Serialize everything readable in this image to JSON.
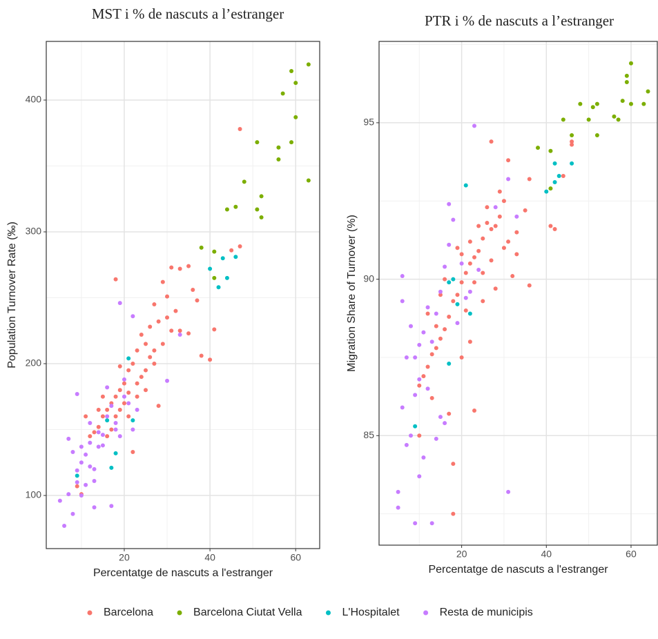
{
  "chart_data": [
    {
      "type": "scatter",
      "title": "MST i % de nascuts a l’estranger",
      "x_label": "Percentatge de nascuts a l'estranger",
      "y_label": "Population Turnover Rate (‰)",
      "xlim": [
        1.8,
        65.6
      ],
      "ylim": [
        59.7,
        444.5
      ],
      "xticks": [
        20,
        40,
        60
      ],
      "yticks": [
        100,
        200,
        300,
        400
      ],
      "grid": true,
      "series": [
        {
          "name": "Barcelona",
          "color": "#F8766D",
          "x": [
            47,
            47,
            45,
            41,
            40,
            38,
            35,
            33,
            37,
            36,
            35,
            31,
            30,
            29,
            28,
            27,
            26,
            25,
            24,
            23,
            22,
            21,
            20,
            19,
            18,
            17,
            16,
            15,
            14,
            13,
            12,
            11,
            18,
            19,
            28,
            22,
            10,
            9,
            24,
            26,
            29,
            30,
            32,
            33,
            27,
            25,
            23,
            21,
            20,
            18,
            17,
            16,
            19,
            21,
            23,
            25,
            27,
            31,
            14,
            15
          ],
          "values": [
            378,
            289,
            286,
            226,
            203,
            206,
            274,
            272,
            248,
            256,
            223,
            273,
            251,
            262,
            232,
            245,
            228,
            215,
            222,
            210,
            200,
            195,
            185,
            180,
            175,
            170,
            165,
            160,
            152,
            148,
            145,
            160,
            264,
            198,
            168,
            133,
            101,
            107,
            190,
            205,
            215,
            235,
            240,
            225,
            210,
            195,
            185,
            178,
            170,
            160,
            150,
            145,
            165,
            160,
            175,
            180,
            200,
            225,
            165,
            175
          ]
        },
        {
          "name": "Barcelona Ciutat Vella",
          "color": "#7CAE00",
          "x": [
            63,
            59,
            60,
            57,
            60,
            51,
            59,
            56,
            56,
            63,
            48,
            52,
            46,
            44,
            51,
            52,
            38,
            41,
            41
          ],
          "values": [
            427,
            422,
            413,
            405,
            387,
            368,
            368,
            364,
            355,
            339,
            338,
            327,
            319,
            317,
            317,
            311,
            288,
            285,
            265
          ]
        },
        {
          "name": "L'Hospitalet",
          "color": "#00BFC4",
          "x": [
            40,
            43,
            46,
            42,
            44,
            21,
            22,
            16,
            18,
            17,
            9
          ],
          "values": [
            272,
            280,
            281,
            258,
            265,
            204,
            157,
            157,
            132,
            121,
            115
          ]
        },
        {
          "name": "Resta de municipis",
          "color": "#C77CFF",
          "x": [
            19,
            22,
            20,
            30,
            33,
            6,
            8,
            13,
            17,
            5,
            7,
            10,
            11,
            13,
            7,
            9,
            10,
            11,
            12,
            14,
            15,
            9,
            14,
            16,
            17,
            18,
            19,
            20,
            21,
            22,
            23,
            12,
            13,
            8,
            9,
            15,
            16,
            10,
            12,
            18
          ],
          "values": [
            246,
            236,
            188,
            187,
            222,
            77,
            86,
            91,
            92,
            96,
            101,
            100,
            108,
            111,
            143,
            119,
            125,
            131,
            122,
            137,
            138,
            177,
            148,
            160,
            168,
            155,
            145,
            175,
            170,
            150,
            165,
            140,
            120,
            133,
            110,
            146,
            182,
            137,
            155,
            150
          ]
        }
      ]
    },
    {
      "type": "scatter",
      "title": "PTR i % de nascuts a l’estranger",
      "x_label": "Percentatge de nascuts a l'estranger",
      "y_label": "Migration Share of Turnover (%)",
      "xlim": [
        0.5,
        66.2
      ],
      "ylim": [
        81.5,
        97.6
      ],
      "xticks": [
        20,
        40,
        60
      ],
      "yticks": [
        85,
        90,
        95
      ],
      "grid": true,
      "series": [
        {
          "name": "Barcelona",
          "color": "#F8766D",
          "x": [
            46,
            46,
            44,
            41,
            42,
            36,
            31,
            27,
            35,
            33,
            31,
            30,
            29,
            28,
            27,
            26,
            25,
            24,
            23,
            22,
            21,
            20,
            19,
            18,
            17,
            16,
            15,
            14,
            13,
            12,
            11,
            10,
            18,
            18,
            23,
            32,
            36,
            28,
            25,
            22,
            20,
            17,
            13,
            10,
            26,
            29,
            24,
            22,
            20,
            19,
            16,
            15,
            30,
            27,
            25,
            33,
            12,
            14,
            21,
            23
          ],
          "values": [
            94.4,
            94.3,
            93.3,
            91.7,
            91.6,
            93.2,
            93.8,
            94.4,
            92.2,
            91.5,
            91.2,
            92.5,
            92.0,
            91.7,
            91.6,
            91.8,
            91.3,
            90.9,
            90.7,
            90.5,
            90.2,
            89.9,
            89.5,
            89.3,
            88.8,
            88.4,
            88.1,
            87.8,
            87.6,
            87.2,
            86.9,
            86.6,
            84.1,
            82.5,
            85.8,
            90.1,
            89.8,
            89.7,
            89.3,
            88.0,
            87.5,
            85.7,
            86.2,
            85.0,
            92.3,
            92.8,
            91.7,
            91.2,
            90.8,
            91.0,
            90.0,
            89.5,
            91.0,
            90.6,
            90.2,
            90.8,
            88.9,
            88.5,
            89.0,
            89.9
          ]
        },
        {
          "name": "Barcelona Ciutat Vella",
          "color": "#7CAE00",
          "x": [
            60,
            59,
            59,
            64,
            58,
            60,
            63,
            52,
            51,
            48,
            56,
            57,
            50,
            44,
            38,
            46,
            52,
            41,
            41
          ],
          "values": [
            96.9,
            96.5,
            96.3,
            96.0,
            95.7,
            95.6,
            95.6,
            95.6,
            95.5,
            95.6,
            95.2,
            95.1,
            95.1,
            95.1,
            94.2,
            94.6,
            94.6,
            94.1,
            92.9
          ]
        },
        {
          "name": "L'Hospitalet",
          "color": "#00BFC4",
          "x": [
            40,
            42,
            43,
            46,
            42,
            21,
            18,
            17,
            19,
            22,
            17,
            9
          ],
          "values": [
            92.8,
            93.7,
            93.3,
            93.7,
            93.1,
            93.0,
            90.0,
            89.9,
            89.2,
            88.9,
            87.3,
            85.3
          ]
        },
        {
          "name": "Resta de municipis",
          "color": "#C77CFF",
          "x": [
            23,
            28,
            31,
            33,
            31,
            5,
            5,
            9,
            13,
            6,
            7,
            8,
            10,
            11,
            6,
            6,
            8,
            9,
            10,
            7,
            12,
            14,
            15,
            16,
            13,
            14,
            15,
            16,
            17,
            18,
            19,
            21,
            22,
            12,
            11,
            9,
            10,
            17,
            20,
            24
          ],
          "values": [
            94.9,
            92.3,
            93.2,
            92.0,
            83.2,
            83.2,
            82.7,
            82.2,
            82.2,
            85.9,
            84.7,
            85.0,
            83.7,
            84.3,
            90.1,
            89.3,
            88.5,
            87.5,
            86.8,
            87.5,
            86.5,
            84.9,
            85.6,
            85.4,
            88.0,
            88.9,
            89.6,
            90.4,
            91.1,
            91.9,
            88.6,
            89.4,
            89.6,
            89.1,
            88.3,
            86.3,
            87.9,
            92.4,
            90.5,
            90.3
          ]
        }
      ]
    }
  ]
}
